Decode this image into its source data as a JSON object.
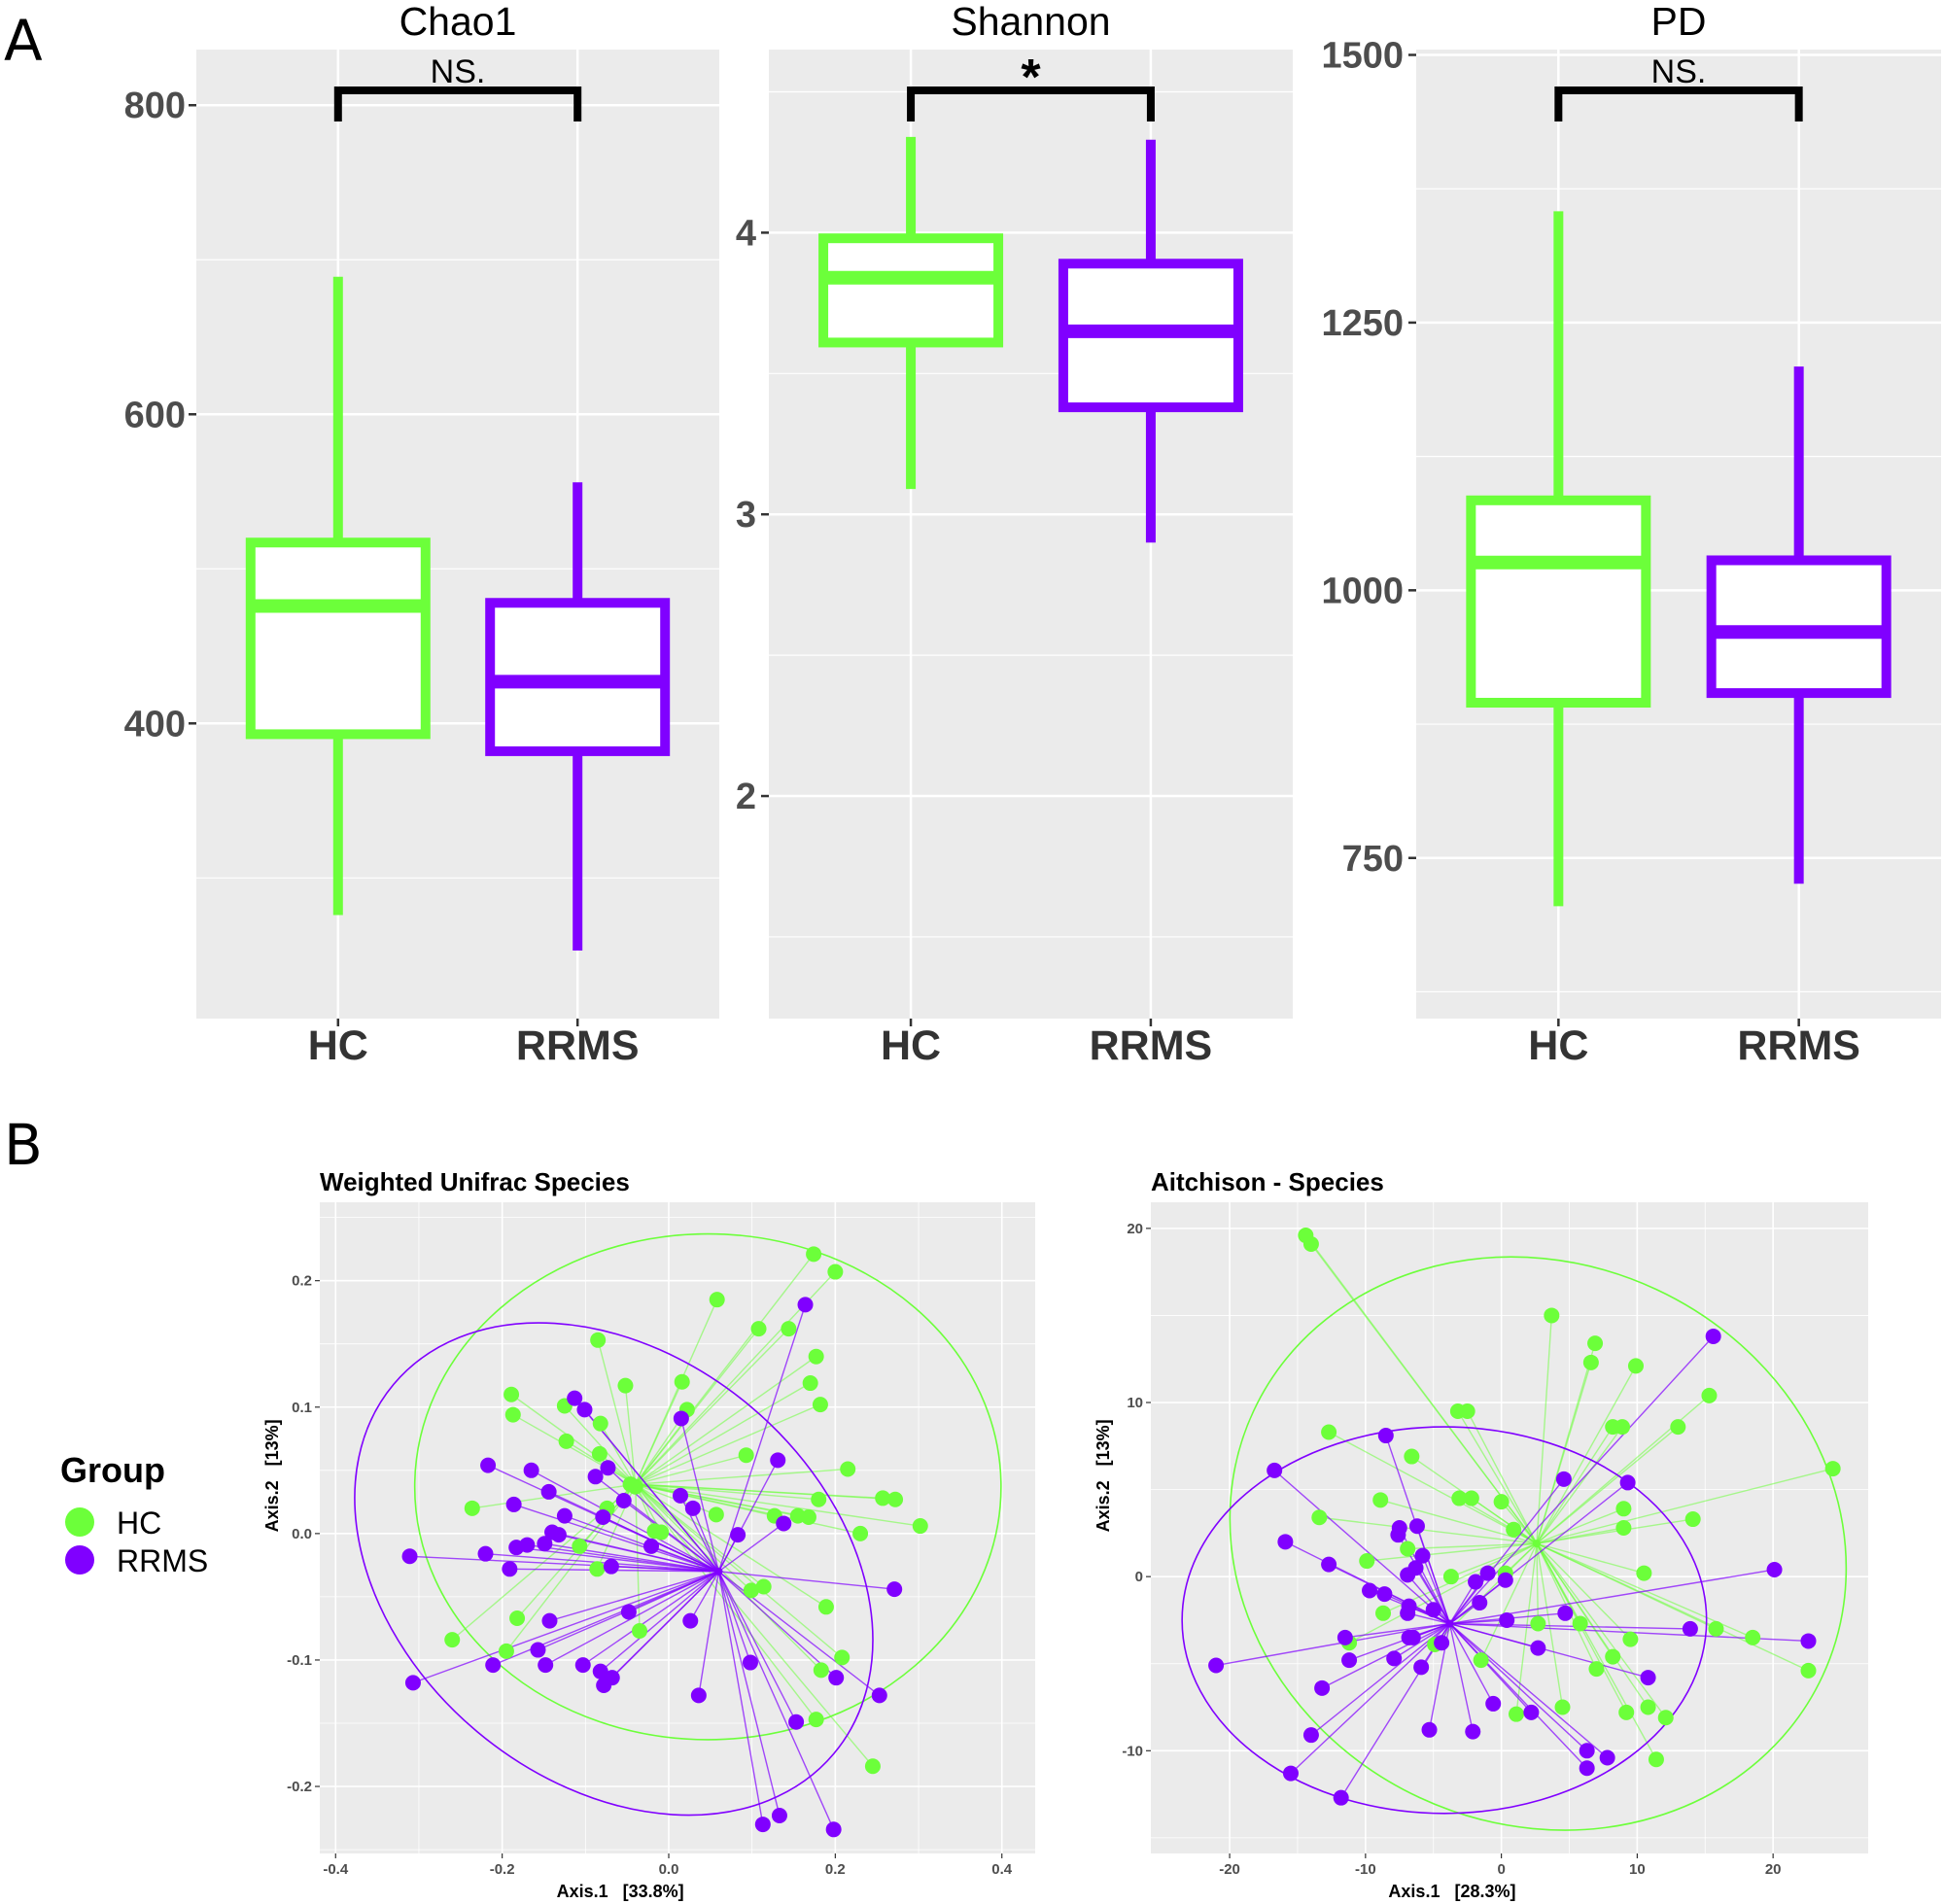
{
  "panel_labels": [
    "A",
    "B"
  ],
  "legend": {
    "title": "Group",
    "items": [
      {
        "label": "HC",
        "color": "#6CFF3A"
      },
      {
        "label": "RRMS",
        "color": "#8000FF"
      }
    ]
  },
  "chart_data": [
    {
      "type": "box",
      "title": "Chao1",
      "categories": [
        "HC",
        "RRMS"
      ],
      "ylim": [
        209,
        836
      ],
      "yticks": [
        400,
        600,
        800
      ],
      "yminor": [
        300,
        500,
        700
      ],
      "ytick_labels": [
        "400",
        "600",
        "800"
      ],
      "grid": true,
      "boxes": [
        {
          "category": "HC",
          "min": 276,
          "q1": 393,
          "median": 476,
          "q3": 517,
          "max": 689,
          "color": "#6CFF3A"
        },
        {
          "category": "RRMS",
          "min": 253,
          "q1": 382,
          "median": 427,
          "q3": 478,
          "max": 556,
          "color": "#8000FF"
        }
      ],
      "annotation": "NS."
    },
    {
      "type": "box",
      "title": "Shannon",
      "categories": [
        "HC",
        "RRMS"
      ],
      "ylim": [
        1.21,
        4.65
      ],
      "yticks": [
        2,
        3,
        4
      ],
      "yminor": [
        1.5,
        2.5,
        3.5,
        4.5
      ],
      "ytick_labels": [
        "2",
        "3",
        "4"
      ],
      "grid": true,
      "boxes": [
        {
          "category": "HC",
          "min": 3.09,
          "q1": 3.61,
          "median": 3.84,
          "q3": 3.98,
          "max": 4.34,
          "color": "#6CFF3A"
        },
        {
          "category": "RRMS",
          "min": 2.9,
          "q1": 3.38,
          "median": 3.65,
          "q3": 3.89,
          "max": 4.33,
          "color": "#8000FF"
        }
      ],
      "annotation": "*"
    },
    {
      "type": "box",
      "title": "PD",
      "categories": [
        "HC",
        "RRMS"
      ],
      "ylim": [
        600,
        1505
      ],
      "yticks": [
        750,
        1000,
        1250,
        1500
      ],
      "yminor": [
        625,
        875,
        1125,
        1375
      ],
      "ytick_labels": [
        "750",
        "1000",
        "1250",
        "1500"
      ],
      "grid": true,
      "boxes": [
        {
          "category": "HC",
          "min": 705,
          "q1": 895,
          "median": 1026,
          "q3": 1084,
          "max": 1354,
          "color": "#6CFF3A"
        },
        {
          "category": "RRMS",
          "min": 726,
          "q1": 904,
          "median": 961,
          "q3": 1028,
          "max": 1209,
          "color": "#8000FF"
        }
      ],
      "annotation": "NS."
    },
    {
      "type": "scatter",
      "title": "Weighted Unifrac Species",
      "xlabel": "Axis.1   [33.8%]",
      "ylabel": "Axis.2   [13%]",
      "xlim": [
        -0.419,
        0.44
      ],
      "ylim": [
        -0.253,
        0.262
      ],
      "xticks": [
        -0.4,
        -0.2,
        0,
        0.2,
        0.4
      ],
      "xtick_labels": [
        "-0.4",
        "-0.2",
        "0.0",
        "0.2",
        "0.4"
      ],
      "yticks": [
        -0.2,
        -0.1,
        0,
        0.1,
        0.2
      ],
      "ytick_labels": [
        "-0.2",
        "-0.1",
        "0.0",
        "0.1",
        "0.2"
      ],
      "grid": true,
      "series": [
        {
          "name": "HC",
          "color": "#6CFF3A",
          "centroid": [
            -0.04,
            0.039
          ],
          "ellipse": {
            "cx": 0.047,
            "cy": 0.037,
            "rx": 0.352,
            "ry": 0.2,
            "rotation": 0
          },
          "points": [
            [
              0.174,
              0.221
            ],
            [
              0.2,
              0.207
            ],
            [
              0.058,
              0.185
            ],
            [
              0.108,
              0.162
            ],
            [
              0.144,
              0.162
            ],
            [
              -0.085,
              0.153
            ],
            [
              0.177,
              0.14
            ],
            [
              0.17,
              0.119
            ],
            [
              0.182,
              0.102
            ],
            [
              0.016,
              0.12
            ],
            [
              -0.052,
              0.117
            ],
            [
              -0.189,
              0.11
            ],
            [
              -0.187,
              0.094
            ],
            [
              -0.125,
              0.101
            ],
            [
              0.022,
              0.098
            ],
            [
              -0.082,
              0.087
            ],
            [
              -0.123,
              0.073
            ],
            [
              -0.083,
              0.063
            ],
            [
              0.093,
              0.062
            ],
            [
              0.215,
              0.051
            ],
            [
              -0.046,
              0.039
            ],
            [
              -0.04,
              0.037
            ],
            [
              -0.236,
              0.02
            ],
            [
              -0.074,
              0.02
            ],
            [
              0.18,
              0.027
            ],
            [
              0.257,
              0.028
            ],
            [
              0.272,
              0.027
            ],
            [
              0.302,
              0.006
            ],
            [
              0.057,
              0.015
            ],
            [
              0.127,
              0.014
            ],
            [
              0.155,
              0.014
            ],
            [
              0.168,
              0.013
            ],
            [
              0.23,
              0.0
            ],
            [
              -0.017,
              0.002
            ],
            [
              -0.009,
              0.001
            ],
            [
              -0.107,
              -0.01
            ],
            [
              -0.086,
              -0.028
            ],
            [
              0.099,
              -0.045
            ],
            [
              0.114,
              -0.042
            ],
            [
              0.189,
              -0.058
            ],
            [
              -0.182,
              -0.067
            ],
            [
              -0.035,
              -0.077
            ],
            [
              -0.26,
              -0.084
            ],
            [
              -0.195,
              -0.093
            ],
            [
              0.208,
              -0.098
            ],
            [
              0.183,
              -0.108
            ],
            [
              0.177,
              -0.147
            ],
            [
              0.245,
              -0.184
            ]
          ]
        },
        {
          "name": "RRMS",
          "color": "#8000FF",
          "centroid": [
            0.06,
            -0.03
          ],
          "ellipse": {
            "cx": -0.066,
            "cy": -0.028,
            "rx": 0.345,
            "ry": 0.168,
            "rotation": 40
          },
          "points": [
            [
              0.164,
              0.181
            ],
            [
              -0.113,
              0.107
            ],
            [
              -0.101,
              0.098
            ],
            [
              0.015,
              0.091
            ],
            [
              0.131,
              0.058
            ],
            [
              -0.217,
              0.054
            ],
            [
              -0.165,
              0.05
            ],
            [
              -0.073,
              0.052
            ],
            [
              -0.088,
              0.045
            ],
            [
              -0.144,
              0.033
            ],
            [
              -0.054,
              0.026
            ],
            [
              0.014,
              0.03
            ],
            [
              0.029,
              0.02
            ],
            [
              -0.186,
              0.023
            ],
            [
              -0.125,
              0.014
            ],
            [
              -0.079,
              0.013
            ],
            [
              0.083,
              -0.001
            ],
            [
              0.138,
              0.008
            ],
            [
              -0.14,
              0.001
            ],
            [
              -0.132,
              -0.001
            ],
            [
              -0.149,
              -0.008
            ],
            [
              -0.17,
              -0.009
            ],
            [
              -0.183,
              -0.011
            ],
            [
              -0.021,
              -0.01
            ],
            [
              -0.22,
              -0.016
            ],
            [
              -0.311,
              -0.018
            ],
            [
              -0.191,
              -0.028
            ],
            [
              -0.069,
              -0.026
            ],
            [
              0.271,
              -0.044
            ],
            [
              -0.048,
              -0.062
            ],
            [
              -0.143,
              -0.069
            ],
            [
              0.026,
              -0.069
            ],
            [
              -0.157,
              -0.092
            ],
            [
              -0.148,
              -0.104
            ],
            [
              -0.211,
              -0.104
            ],
            [
              -0.103,
              -0.104
            ],
            [
              -0.082,
              -0.109
            ],
            [
              -0.068,
              -0.114
            ],
            [
              -0.078,
              -0.12
            ],
            [
              0.098,
              -0.102
            ],
            [
              0.201,
              -0.114
            ],
            [
              -0.307,
              -0.118
            ],
            [
              0.036,
              -0.128
            ],
            [
              0.253,
              -0.128
            ],
            [
              0.153,
              -0.149
            ],
            [
              0.113,
              -0.23
            ],
            [
              0.133,
              -0.223
            ],
            [
              0.198,
              -0.234
            ]
          ]
        }
      ]
    },
    {
      "type": "scatter",
      "title": "Aitchison - Species",
      "xlabel": "Axis.1   [28.3%]",
      "ylabel": "Axis.2   [13%]",
      "xlim": [
        -25.8,
        27.0
      ],
      "ylim": [
        -15.9,
        21.5
      ],
      "xticks": [
        -20,
        -10,
        0,
        10,
        20
      ],
      "xtick_labels": [
        "-20",
        "-10",
        "0",
        "10",
        "20"
      ],
      "yticks": [
        -10,
        0,
        10,
        20
      ],
      "ytick_labels": [
        "-10",
        "0",
        "10",
        "20"
      ],
      "grid": true,
      "series": [
        {
          "name": "HC",
          "color": "#6CFF3A",
          "centroid": [
            2.6,
            1.9
          ],
          "ellipse": {
            "cx": 2.7,
            "cy": 1.9,
            "rx": 23.1,
            "ry": 16.1,
            "rotation": 25
          },
          "points": [
            [
              -14.4,
              19.6
            ],
            [
              -14.0,
              19.1
            ],
            [
              3.7,
              15.0
            ],
            [
              6.9,
              13.4
            ],
            [
              6.6,
              12.3
            ],
            [
              9.9,
              12.1
            ],
            [
              15.3,
              10.4
            ],
            [
              -3.2,
              9.5
            ],
            [
              -2.5,
              9.5
            ],
            [
              8.2,
              8.6
            ],
            [
              8.9,
              8.6
            ],
            [
              13.0,
              8.6
            ],
            [
              -12.7,
              8.3
            ],
            [
              -6.6,
              6.9
            ],
            [
              24.4,
              6.2
            ],
            [
              -8.9,
              4.4
            ],
            [
              -3.1,
              4.5
            ],
            [
              -2.2,
              4.5
            ],
            [
              0.0,
              4.3
            ],
            [
              9.0,
              3.9
            ],
            [
              -13.4,
              3.4
            ],
            [
              14.1,
              3.3
            ],
            [
              9.0,
              2.8
            ],
            [
              0.9,
              2.7
            ],
            [
              -6.9,
              1.6
            ],
            [
              -9.9,
              0.9
            ],
            [
              0.3,
              0.2
            ],
            [
              10.5,
              0.2
            ],
            [
              -3.7,
              0.0
            ],
            [
              -8.7,
              -2.1
            ],
            [
              2.7,
              -2.7
            ],
            [
              5.8,
              -2.7
            ],
            [
              15.8,
              -3.0
            ],
            [
              18.5,
              -3.5
            ],
            [
              9.5,
              -3.6
            ],
            [
              -11.2,
              -3.8
            ],
            [
              -4.9,
              -3.9
            ],
            [
              8.2,
              -4.6
            ],
            [
              -1.5,
              -4.8
            ],
            [
              7.0,
              -5.3
            ],
            [
              22.6,
              -5.4
            ],
            [
              4.5,
              -7.5
            ],
            [
              10.8,
              -7.5
            ],
            [
              1.1,
              -7.9
            ],
            [
              9.2,
              -7.8
            ],
            [
              12.1,
              -8.1
            ],
            [
              11.4,
              -10.5
            ]
          ]
        },
        {
          "name": "RRMS",
          "color": "#8000FF",
          "centroid": [
            -3.8,
            -2.7
          ],
          "ellipse": {
            "cx": -4.2,
            "cy": -2.5,
            "rx": 19.3,
            "ry": 11.1,
            "rotation": 0
          },
          "points": [
            [
              15.6,
              13.8
            ],
            [
              -8.5,
              8.1
            ],
            [
              -16.7,
              6.1
            ],
            [
              4.6,
              5.6
            ],
            [
              9.3,
              5.4
            ],
            [
              -7.5,
              2.8
            ],
            [
              -6.2,
              2.9
            ],
            [
              -7.6,
              2.4
            ],
            [
              -15.9,
              2.0
            ],
            [
              -5.8,
              1.2
            ],
            [
              -12.7,
              0.7
            ],
            [
              -6.3,
              0.5
            ],
            [
              -6.9,
              0.1
            ],
            [
              -1.0,
              0.2
            ],
            [
              -1.9,
              -0.3
            ],
            [
              0.3,
              -0.2
            ],
            [
              20.1,
              0.4
            ],
            [
              -9.7,
              -0.8
            ],
            [
              -8.6,
              -1.0
            ],
            [
              -1.6,
              -1.5
            ],
            [
              -6.8,
              -1.7
            ],
            [
              -6.9,
              -2.1
            ],
            [
              -5.0,
              -1.9
            ],
            [
              4.7,
              -2.1
            ],
            [
              0.4,
              -2.5
            ],
            [
              13.9,
              -3.0
            ],
            [
              22.6,
              -3.7
            ],
            [
              -11.5,
              -3.5
            ],
            [
              -6.8,
              -3.5
            ],
            [
              -6.5,
              -3.5
            ],
            [
              -4.4,
              -3.8
            ],
            [
              2.7,
              -4.1
            ],
            [
              -11.2,
              -4.8
            ],
            [
              -7.9,
              -4.7
            ],
            [
              -21.0,
              -5.1
            ],
            [
              -5.9,
              -5.2
            ],
            [
              10.8,
              -5.8
            ],
            [
              -13.2,
              -6.4
            ],
            [
              -0.6,
              -7.3
            ],
            [
              2.2,
              -7.8
            ],
            [
              -5.3,
              -8.8
            ],
            [
              -2.1,
              -8.9
            ],
            [
              -14.0,
              -9.1
            ],
            [
              6.3,
              -10.0
            ],
            [
              6.3,
              -11.0
            ],
            [
              7.8,
              -10.4
            ],
            [
              -15.5,
              -11.3
            ],
            [
              -11.8,
              -12.7
            ]
          ]
        }
      ]
    }
  ]
}
